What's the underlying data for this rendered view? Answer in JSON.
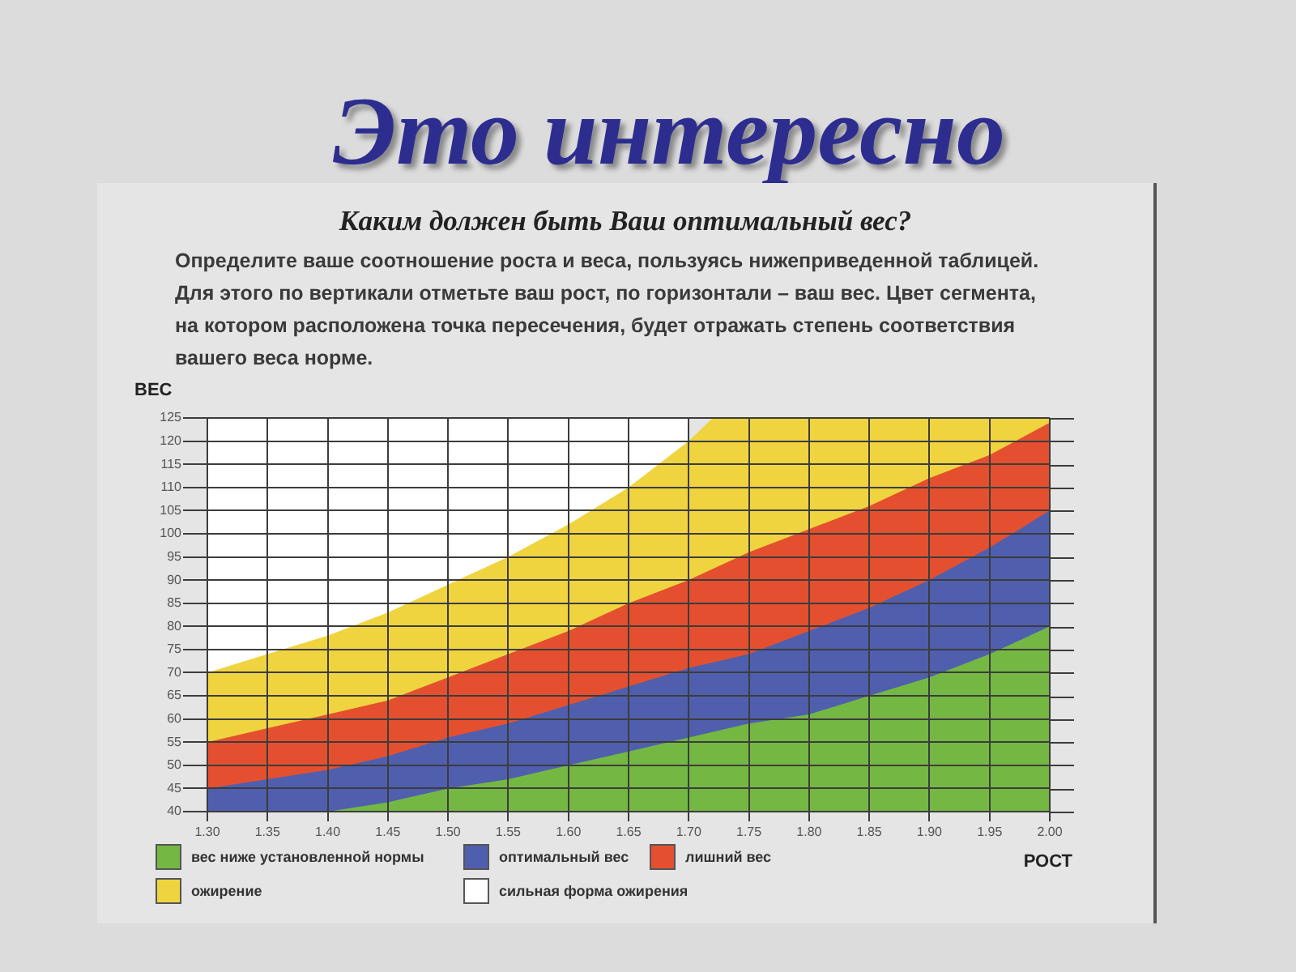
{
  "chart_data": {
    "type": "area",
    "title": "Это интересно",
    "subtitle": "Каким должен быть Ваш оптимальный вес?",
    "annotations": [
      "Определите ваше соотношение роста и веса, пользуясь нижеприведенной таблицей. Для этого по вертикали отметьте ваш рост, по горизонтали – ваш вес. Цвет сегмента, на котором расположена точка пересечения, будет отражать степень соответствия вашего веса норме."
    ],
    "xlabel": "РОСТ",
    "ylabel": "ВЕС",
    "x": [
      1.3,
      1.35,
      1.4,
      1.45,
      1.5,
      1.55,
      1.6,
      1.65,
      1.7,
      1.75,
      1.8,
      1.85,
      1.9,
      1.95,
      2.0
    ],
    "series": [
      {
        "name": "вес ниже установленной нормы",
        "color": "#74b843",
        "x": [
          1.4,
          1.45,
          1.5,
          1.55,
          1.6,
          1.65,
          1.7,
          1.75,
          1.8,
          1.85,
          1.9,
          1.95,
          2.0
        ],
        "values": [
          40,
          42,
          45,
          47,
          50,
          53,
          56,
          59,
          61,
          65,
          69,
          74,
          80
        ]
      },
      {
        "name": "оптимальный вес",
        "color": "#4f5fae",
        "values": [
          45,
          47,
          49,
          52,
          56,
          59,
          63,
          67,
          71,
          74,
          79,
          84,
          90,
          97,
          105
        ]
      },
      {
        "name": "лишний вес",
        "color": "#e4502f",
        "values": [
          55,
          58,
          61,
          64,
          69,
          74,
          79,
          85,
          90,
          96,
          101,
          106,
          112,
          117,
          124
        ]
      },
      {
        "name": "ожирение",
        "color": "#efd43f",
        "x": [
          1.3,
          1.35,
          1.4,
          1.45,
          1.5,
          1.55,
          1.6,
          1.65,
          1.7,
          1.72,
          2.0
        ],
        "values": [
          70,
          74,
          78,
          83,
          89,
          95,
          102,
          110,
          120,
          125,
          125
        ]
      },
      {
        "name": "сильная форма ожирения",
        "color": "#ffffff",
        "x": [
          1.3,
          1.7
        ],
        "values": [
          125,
          125
        ]
      }
    ],
    "xlim": [
      1.3,
      2.0
    ],
    "ylim": [
      40,
      125
    ],
    "xticks": [
      {
        "value": 1.3,
        "label": "1.30"
      },
      {
        "value": 1.35,
        "label": "1.35"
      },
      {
        "value": 1.4,
        "label": "1.40"
      },
      {
        "value": 1.45,
        "label": "1.45"
      },
      {
        "value": 1.5,
        "label": "1.50"
      },
      {
        "value": 1.55,
        "label": "1.55"
      },
      {
        "value": 1.6,
        "label": "1.60"
      },
      {
        "value": 1.65,
        "label": "1.65"
      },
      {
        "value": 1.7,
        "label": "1.70"
      },
      {
        "value": 1.75,
        "label": "1.75"
      },
      {
        "value": 1.8,
        "label": "1.80"
      },
      {
        "value": 1.85,
        "label": "1.85"
      },
      {
        "value": 1.9,
        "label": "1.90"
      },
      {
        "value": 1.95,
        "label": "1.95"
      },
      {
        "value": 2.0,
        "label": "2.00"
      }
    ],
    "yticks": [
      40,
      45,
      50,
      55,
      60,
      65,
      70,
      75,
      80,
      85,
      90,
      95,
      100,
      105,
      110,
      115,
      120,
      125
    ],
    "grid": true,
    "legend": "bottom"
  }
}
